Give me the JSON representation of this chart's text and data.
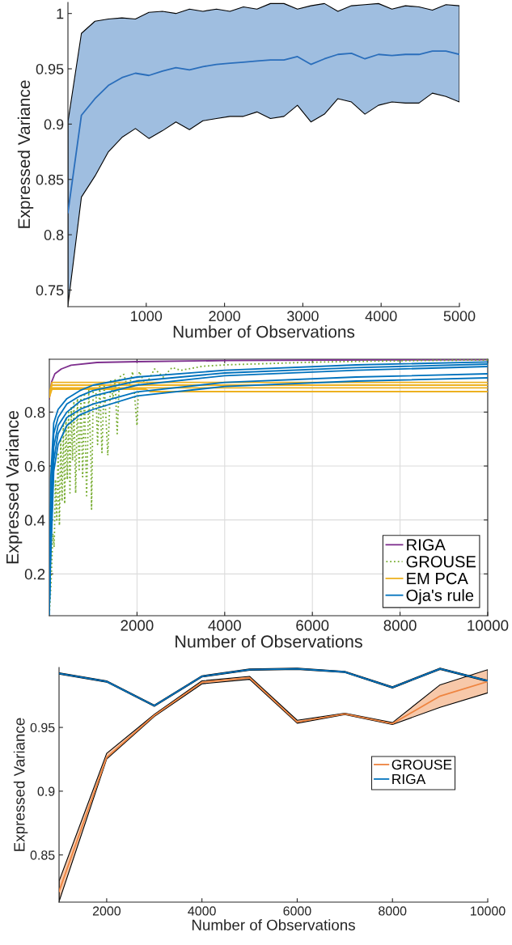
{
  "chart_data": [
    {
      "type": "line",
      "xlabel": "Number of Observations",
      "ylabel": "Expressed Variance",
      "xlim": [
        0,
        5000
      ],
      "ylim": [
        0.735,
        1.01
      ],
      "xticks": [
        1000,
        2000,
        3000,
        4000,
        5000
      ],
      "yticks": [
        0.75,
        0.8,
        0.85,
        0.9,
        0.95,
        1
      ],
      "grid": false,
      "legend": false,
      "x": [
        0,
        172,
        345,
        517,
        690,
        862,
        1034,
        1207,
        1379,
        1552,
        1724,
        1897,
        2069,
        2241,
        2414,
        2586,
        2759,
        2931,
        3103,
        3276,
        3448,
        3621,
        3793,
        3966,
        4138,
        4310,
        4483,
        4655,
        4828,
        5000
      ],
      "series": [
        {
          "color": "#2a6ebb",
          "values": [
            0.82,
            0.908,
            0.923,
            0.935,
            0.942,
            0.946,
            0.944,
            0.948,
            0.951,
            0.949,
            0.952,
            0.954,
            0.955,
            0.956,
            0.957,
            0.958,
            0.958,
            0.961,
            0.954,
            0.959,
            0.963,
            0.964,
            0.959,
            0.963,
            0.962,
            0.963,
            0.963,
            0.966,
            0.966,
            0.963
          ],
          "lower": [
            0.736,
            0.834,
            0.853,
            0.875,
            0.888,
            0.896,
            0.887,
            0.894,
            0.902,
            0.895,
            0.903,
            0.905,
            0.907,
            0.907,
            0.911,
            0.905,
            0.907,
            0.917,
            0.902,
            0.909,
            0.923,
            0.92,
            0.909,
            0.917,
            0.92,
            0.919,
            0.919,
            0.928,
            0.925,
            0.92
          ],
          "upper": [
            0.902,
            0.982,
            0.993,
            0.995,
            0.996,
            0.995,
            1.001,
            1.002,
            1.0,
            1.004,
            1.002,
            1.004,
            1.002,
            1.006,
            1.004,
            1.009,
            1.009,
            1.004,
            1.007,
            1.009,
            1.002,
            1.007,
            1.008,
            1.009,
            1.004,
            1.007,
            1.006,
            1.003,
            1.008,
            1.007
          ]
        }
      ]
    },
    {
      "type": "line",
      "xlabel": "Number of Observations",
      "ylabel": "Expressed Variance",
      "xlim": [
        0,
        10000
      ],
      "ylim": [
        0.045,
        0.996
      ],
      "xticks": [
        2000,
        4000,
        6000,
        8000,
        10000
      ],
      "yticks": [
        0.2,
        0.4,
        0.6,
        0.8
      ],
      "grid": true,
      "legend": "bottom right",
      "series": [
        {
          "name": "RIGA",
          "color": "#7e2f8e",
          "x": [
            0,
            52,
            126,
            274,
            496,
            1089,
            2015,
            4052,
            6274,
            10000
          ],
          "values": [
            0.85,
            0.912,
            0.942,
            0.96,
            0.974,
            0.984,
            0.987,
            0.991,
            0.993,
            0.994
          ]
        },
        {
          "name": "GROUSE",
          "color": "#77ac30",
          "line_style": "dotted",
          "x": [
            0,
            40,
            80,
            110,
            140,
            170,
            200,
            230,
            260,
            290,
            320,
            350,
            380,
            410,
            440,
            470,
            500,
            530,
            560,
            600,
            640,
            680,
            720,
            760,
            800,
            850,
            900,
            950,
            963,
            1000,
            1060,
            1100,
            1150,
            1200,
            1250,
            1300,
            1333,
            1400,
            1450,
            1500,
            1548,
            1600,
            1700,
            1800,
            1900,
            2000,
            2050,
            2200,
            2400,
            2600,
            2800,
            3000,
            3500,
            4000,
            5000,
            6000,
            7000,
            8000,
            9000,
            10000
          ],
          "values": [
            0.05,
            0.17,
            0.35,
            0.3,
            0.55,
            0.4,
            0.65,
            0.38,
            0.7,
            0.47,
            0.75,
            0.46,
            0.78,
            0.55,
            0.8,
            0.5,
            0.82,
            0.62,
            0.84,
            0.5,
            0.85,
            0.58,
            0.86,
            0.56,
            0.87,
            0.49,
            0.88,
            0.62,
            0.44,
            0.88,
            0.89,
            0.68,
            0.9,
            0.65,
            0.91,
            0.75,
            0.64,
            0.92,
            0.85,
            0.92,
            0.72,
            0.93,
            0.94,
            0.88,
            0.95,
            0.75,
            0.95,
            0.9,
            0.96,
            0.93,
            0.965,
            0.955,
            0.97,
            0.975,
            0.98,
            0.985,
            0.988,
            0.99,
            0.992,
            0.993
          ]
        },
        {
          "name": "EM PCA",
          "color": "#edb120",
          "x": [
            0,
            60,
            10000
          ],
          "values": [
            0.87,
            0.91,
            0.91
          ]
        },
        {
          "color": "#edb120",
          "x": [
            0,
            60,
            10000
          ],
          "values": [
            0.865,
            0.9,
            0.9
          ]
        },
        {
          "color": "#edb120",
          "x": [
            0,
            60,
            10000
          ],
          "values": [
            0.86,
            0.89,
            0.89
          ]
        },
        {
          "color": "#edb120",
          "x": [
            0,
            60,
            2200,
            2300,
            10000
          ],
          "values": [
            0.855,
            0.885,
            0.885,
            0.876,
            0.876
          ]
        },
        {
          "name": "Oja's rule",
          "color": "#0072bd",
          "x": [
            0,
            30,
            100,
            200,
            400,
            700,
            1000,
            2000,
            4000,
            7000,
            10000
          ],
          "values": [
            0.05,
            0.55,
            0.76,
            0.81,
            0.85,
            0.88,
            0.9,
            0.93,
            0.955,
            0.975,
            0.986
          ]
        },
        {
          "color": "#0072bd",
          "x": [
            0,
            30,
            100,
            200,
            400,
            700,
            1000,
            2000,
            4000,
            7000,
            10000
          ],
          "values": [
            0.06,
            0.45,
            0.72,
            0.78,
            0.83,
            0.86,
            0.88,
            0.915,
            0.945,
            0.965,
            0.978
          ]
        },
        {
          "color": "#0072bd",
          "x": [
            0,
            30,
            100,
            200,
            400,
            700,
            1000,
            2000,
            4000,
            7000,
            10000
          ],
          "values": [
            0.07,
            0.35,
            0.67,
            0.75,
            0.8,
            0.84,
            0.86,
            0.9,
            0.935,
            0.955,
            0.969
          ]
        },
        {
          "color": "#0072bd",
          "x": [
            0,
            30,
            100,
            200,
            400,
            700,
            1000,
            2000,
            4000,
            7000,
            10000
          ],
          "values": [
            0.075,
            0.3,
            0.62,
            0.72,
            0.78,
            0.81,
            0.83,
            0.875,
            0.91,
            0.93,
            0.942
          ]
        },
        {
          "color": "#0072bd",
          "x": [
            0,
            30,
            100,
            200,
            400,
            700,
            1000,
            2000,
            4000,
            7000,
            10000
          ],
          "values": [
            0.08,
            0.25,
            0.58,
            0.68,
            0.75,
            0.79,
            0.81,
            0.86,
            0.895,
            0.915,
            0.927
          ]
        }
      ]
    },
    {
      "type": "line",
      "xlabel": "Number of Observations",
      "ylabel": "Expressed Variance",
      "xlim": [
        1000,
        10000
      ],
      "ylim": [
        0.813,
        0.997
      ],
      "xticks": [
        2000,
        4000,
        6000,
        8000,
        10000
      ],
      "yticks": [
        0.85,
        0.9,
        0.95
      ],
      "grid": false,
      "legend": "right",
      "x": [
        1000,
        2000,
        3000,
        4000,
        5000,
        6000,
        7000,
        8000,
        9000,
        10000
      ],
      "series": [
        {
          "name": "GROUSE",
          "color": "#ee8440",
          "values": [
            0.8214,
            0.9265,
            0.9594,
            0.9854,
            0.989,
            0.9543,
            0.9606,
            0.953,
            0.9746,
            0.986
          ],
          "lower": [
            0.8135,
            0.9252,
            0.9586,
            0.9842,
            0.9877,
            0.9533,
            0.9601,
            0.9523,
            0.9657,
            0.9771
          ],
          "upper": [
            0.8295,
            0.9297,
            0.9602,
            0.9865,
            0.99,
            0.9556,
            0.9611,
            0.9538,
            0.9834,
            0.9953
          ]
        },
        {
          "name": "RIGA",
          "color": "#0072bd",
          "values": [
            0.9923,
            0.986,
            0.967,
            0.99,
            0.9953,
            0.996,
            0.9935,
            0.9814,
            0.996,
            0.9865
          ],
          "lower": [
            0.9918,
            0.9855,
            0.9665,
            0.9895,
            0.9948,
            0.9955,
            0.993,
            0.9809,
            0.9955,
            0.986
          ],
          "upper": [
            0.9928,
            0.9865,
            0.9675,
            0.9905,
            0.9958,
            0.9965,
            0.994,
            0.9819,
            0.9965,
            0.987
          ]
        }
      ]
    }
  ]
}
